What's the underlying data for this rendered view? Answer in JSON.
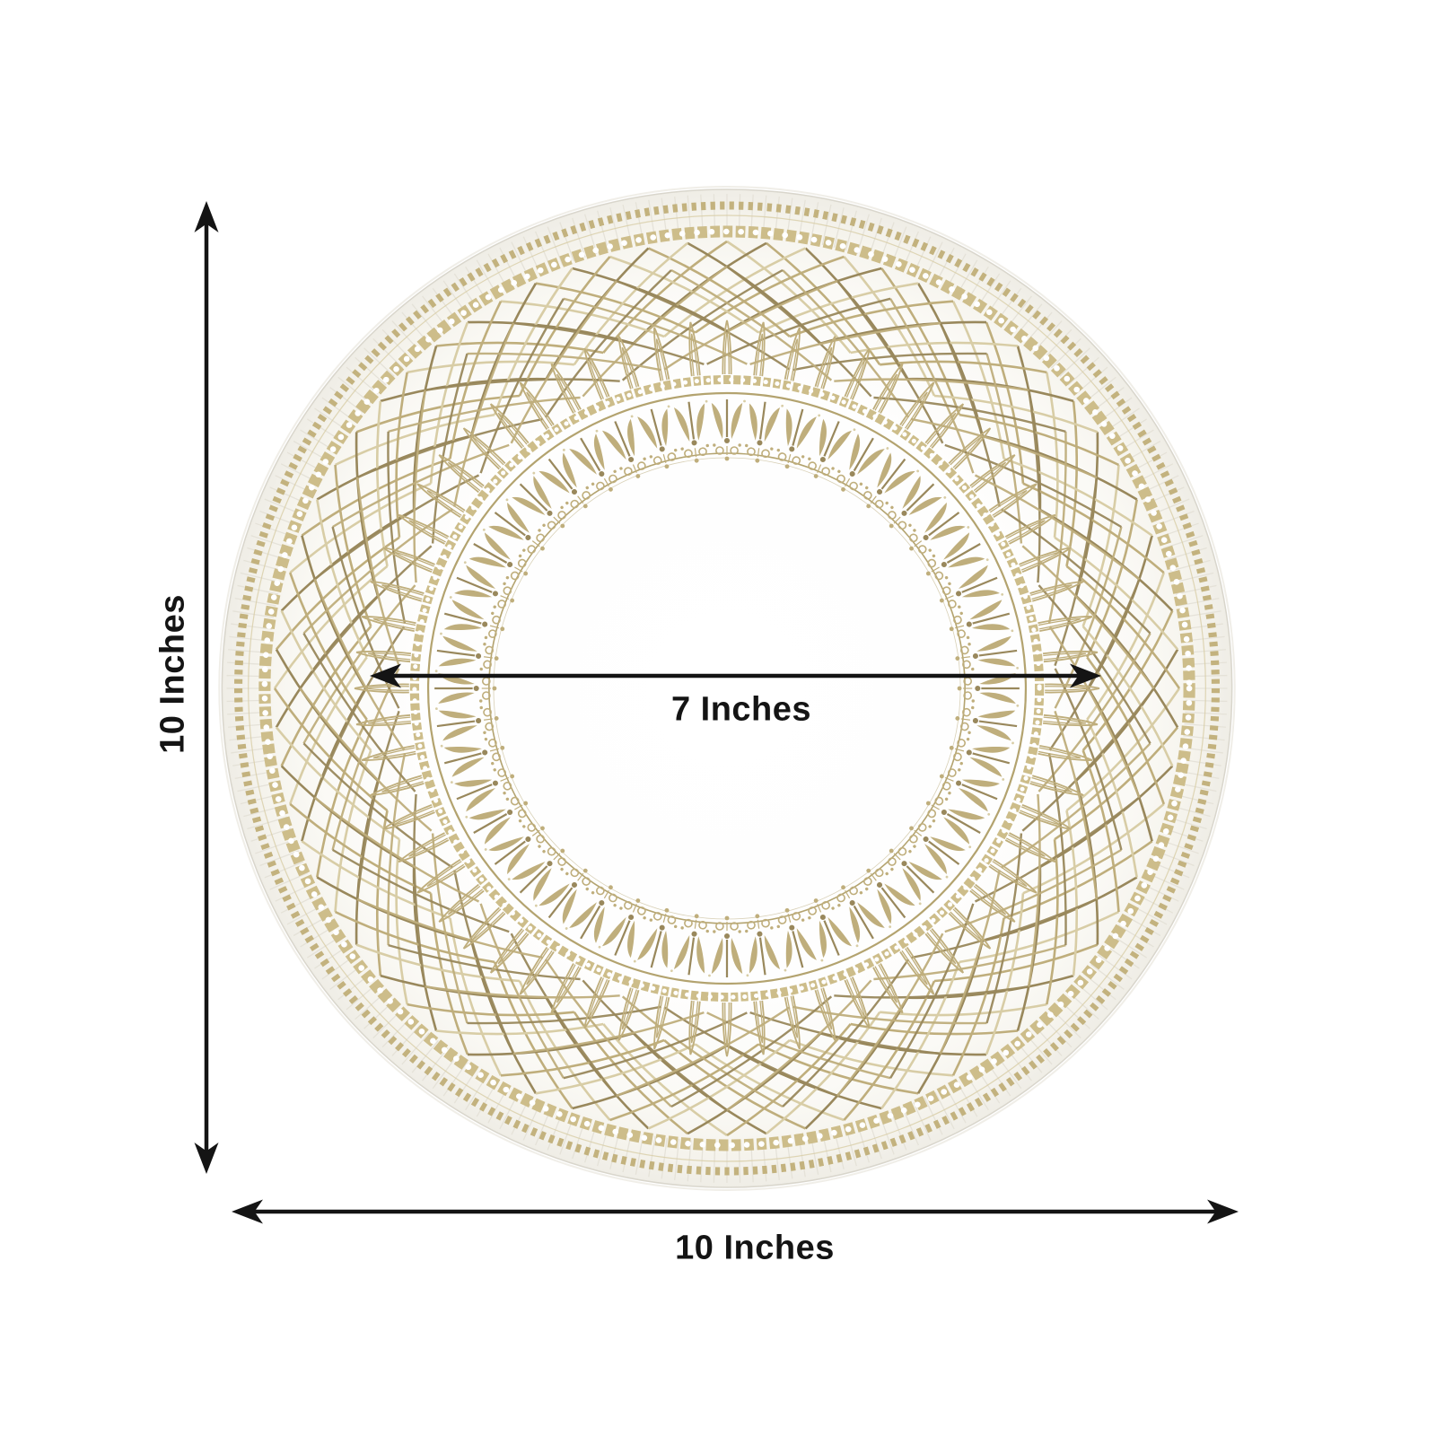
{
  "labels": {
    "height": "10 Inches",
    "inner_diameter": "7 Inches",
    "width": "10 Inches"
  },
  "colors": {
    "background": "#ffffff",
    "dimension_lines": "#141414",
    "label_text": "#141414",
    "plate_base": "#ffffff",
    "rim_rib": "#e4e1d7",
    "gold_light": "#d8cda6",
    "gold_mid": "#bfae7c",
    "gold_dark": "#99885c",
    "gold_bead": "#cdbd8a",
    "gold_dash": "#c3b27e",
    "gold_border": "#b3a36f"
  }
}
